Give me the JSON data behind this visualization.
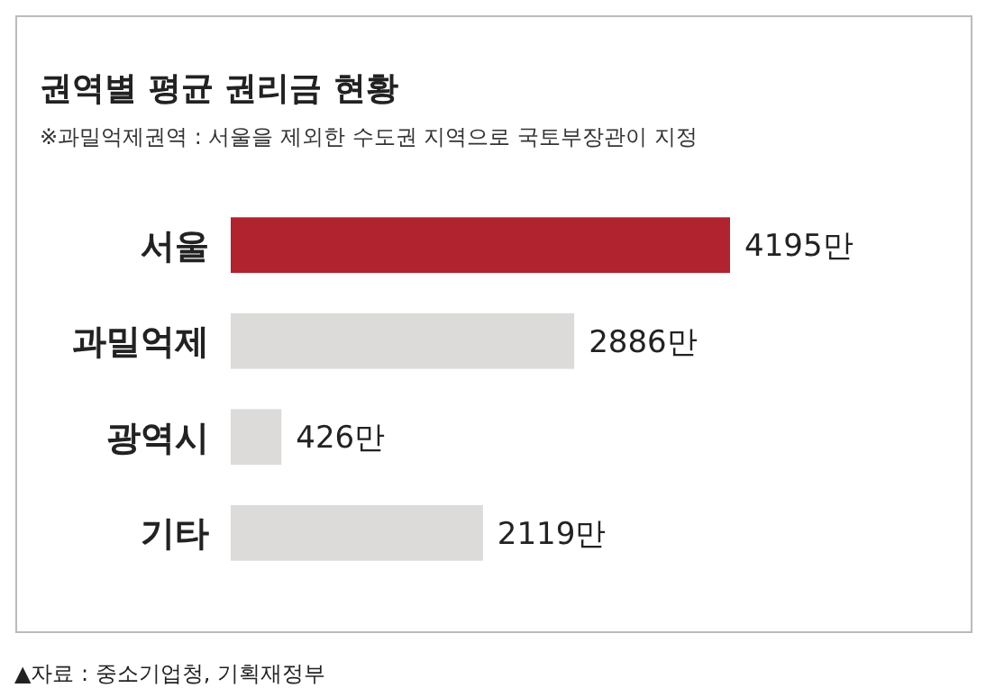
{
  "chart_data": {
    "type": "bar",
    "orientation": "horizontal",
    "title": "권역별 평균 권리금 현황",
    "subtitle": "※과밀억제권역 : 서울을 제외한 수도권 지역으로 국토부장관이 지정",
    "categories": [
      "서울",
      "과밀억제",
      "광역시",
      "기타"
    ],
    "values": [
      4195,
      2886,
      426,
      2119
    ],
    "colors": [
      "#b0232f",
      "#dddbd9",
      "#dddbd9",
      "#dddbd9"
    ],
    "value_labels": [
      "4195만",
      "2886만",
      "426만",
      "2119만"
    ],
    "annotations": [
      "▲자료 : 중소기업청, 기획재정부"
    ]
  }
}
